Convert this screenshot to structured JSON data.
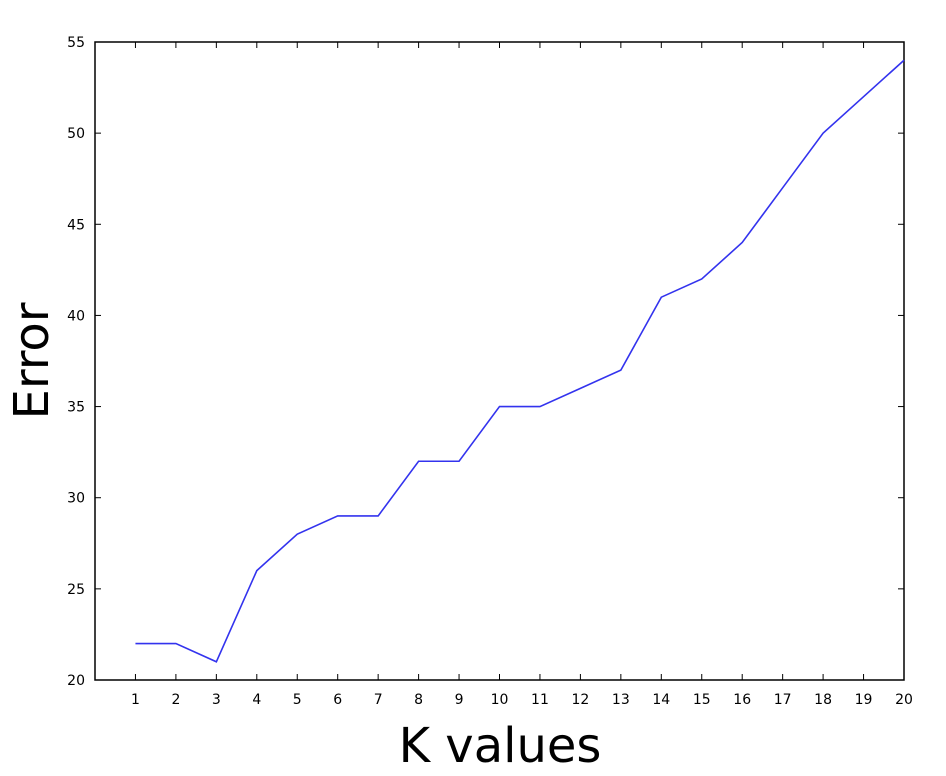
{
  "chart_data": {
    "type": "line",
    "title": "",
    "xlabel": "K values",
    "ylabel": "Error",
    "x": [
      1,
      2,
      3,
      4,
      5,
      6,
      7,
      8,
      9,
      10,
      11,
      12,
      13,
      14,
      15,
      16,
      17,
      18,
      19,
      20
    ],
    "series": [
      {
        "values": [
          22,
          22,
          21,
          26,
          28,
          29,
          29,
          32,
          32,
          35,
          35,
          36,
          37,
          41,
          42,
          44,
          47,
          50,
          52,
          54
        ],
        "color": "#3333ee"
      }
    ],
    "xlim": [
      0,
      20
    ],
    "ylim": [
      20,
      55
    ],
    "xticks": [
      1,
      2,
      3,
      4,
      5,
      6,
      7,
      8,
      9,
      10,
      11,
      12,
      13,
      14,
      15,
      16,
      17,
      18,
      19,
      20
    ],
    "yticks": [
      20,
      25,
      30,
      35,
      40,
      45,
      50,
      55
    ],
    "grid": false,
    "legend": "none"
  }
}
